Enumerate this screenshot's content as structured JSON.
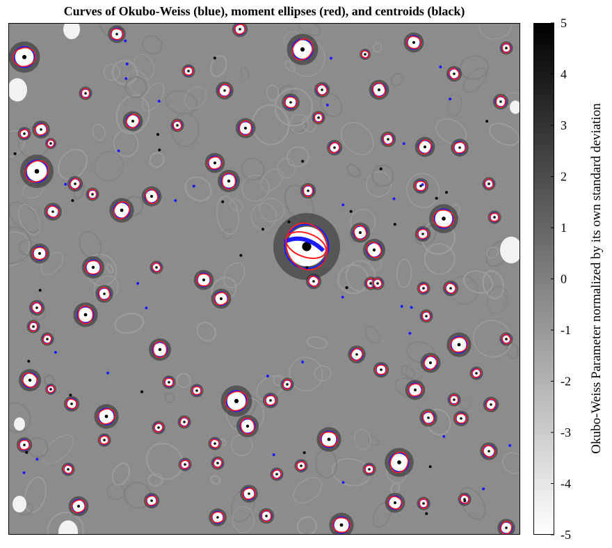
{
  "chart_data": {
    "type": "heatmap",
    "title": "Curves of Okubo-Weiss (blue), moment ellipses (red), and centroids (black)",
    "colorbar": {
      "label": "Okubo-Weiss Parameter normalized by its own standard deviation",
      "range": [
        -5,
        5
      ],
      "ticks": [
        5,
        4,
        3,
        2,
        1,
        0,
        -1,
        -2,
        -3,
        -4,
        -5
      ],
      "colormap": "gray (black = 5, white = -5)"
    },
    "axes": {
      "xticks": [],
      "yticks": [],
      "grid": false
    },
    "series": [
      {
        "name": "Okubo-Weiss",
        "color": "#0000ff"
      },
      {
        "name": "moment ellipses",
        "color": "#ff0000"
      },
      {
        "name": "centroids",
        "color": "#000000"
      }
    ],
    "background_gray": "#8c8c8c"
  }
}
